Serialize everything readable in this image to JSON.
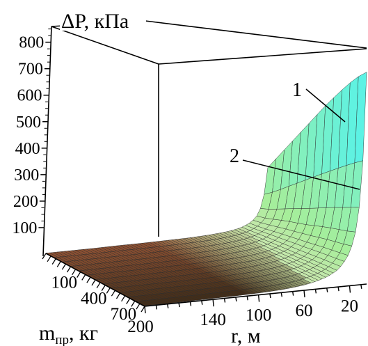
{
  "chart_data": {
    "type": "surface3d",
    "z_label": "ΔP, кПа",
    "r_label": "r, м",
    "m_label_main": "m",
    "m_label_sub": "пр",
    "m_label_unit": ", кг",
    "z_ticks": [
      "800",
      "700",
      "600",
      "500",
      "400",
      "300",
      "200",
      "100"
    ],
    "z_tick_values": [
      800,
      700,
      600,
      500,
      400,
      300,
      200,
      100
    ],
    "r_ticks": [
      "20",
      "60",
      "100",
      "140",
      "200"
    ],
    "r_tick_values": [
      20,
      60,
      100,
      140,
      200
    ],
    "m_ticks": [
      "100",
      "400",
      "700"
    ],
    "m_tick_values": [
      100,
      400,
      700
    ],
    "zlim": [
      0,
      850
    ],
    "rlim": [
      5,
      200
    ],
    "mlim": [
      0,
      1000
    ],
    "curve_labels": [
      "1",
      "2"
    ],
    "surface": {
      "m_values": [
        0,
        100,
        200,
        300,
        400,
        500,
        600,
        700,
        800,
        900,
        1000
      ],
      "r_values": [
        5,
        10,
        15,
        20,
        30,
        40,
        50,
        60,
        80,
        100,
        120,
        140,
        160,
        180,
        200
      ],
      "delta_p": [
        [
          240,
          105,
          60,
          40,
          22,
          14,
          10,
          7,
          4,
          3,
          2,
          2,
          1,
          1,
          1
        ],
        [
          300,
          125,
          70,
          47,
          26,
          17,
          12,
          8,
          5,
          3,
          2,
          2,
          1,
          1,
          1
        ],
        [
          360,
          150,
          85,
          55,
          30,
          19,
          13,
          9,
          5,
          4,
          3,
          2,
          2,
          1,
          1
        ],
        [
          420,
          175,
          100,
          65,
          35,
          22,
          15,
          11,
          6,
          4,
          3,
          2,
          2,
          1,
          1
        ],
        [
          480,
          200,
          112,
          73,
          39,
          25,
          17,
          12,
          7,
          5,
          3,
          3,
          2,
          2,
          1
        ],
        [
          540,
          225,
          125,
          82,
          44,
          28,
          19,
          13,
          8,
          5,
          4,
          3,
          2,
          2,
          1
        ],
        [
          600,
          250,
          140,
          90,
          48,
          31,
          21,
          15,
          8,
          5,
          4,
          3,
          2,
          2,
          2
        ],
        [
          655,
          275,
          155,
          100,
          53,
          34,
          23,
          16,
          9,
          6,
          4,
          3,
          3,
          2,
          2
        ],
        [
          710,
          300,
          168,
          108,
          58,
          37,
          25,
          17,
          10,
          6,
          4,
          3,
          3,
          2,
          2
        ],
        [
          760,
          325,
          180,
          116,
          62,
          40,
          27,
          18,
          10,
          7,
          5,
          4,
          3,
          2,
          2
        ],
        [
          800,
          350,
          195,
          125,
          66,
          42,
          29,
          20,
          11,
          7,
          5,
          4,
          3,
          2,
          2
        ]
      ]
    },
    "colors": {
      "surface_high": "#58f2e8",
      "surface_mid": "#a6ee9a",
      "surface_low_light": "#c6e7ac",
      "surface_far_dark": "#3c2a16",
      "surface_near_dark": "#8c5032",
      "grid_line": "#2b2b2b"
    }
  }
}
